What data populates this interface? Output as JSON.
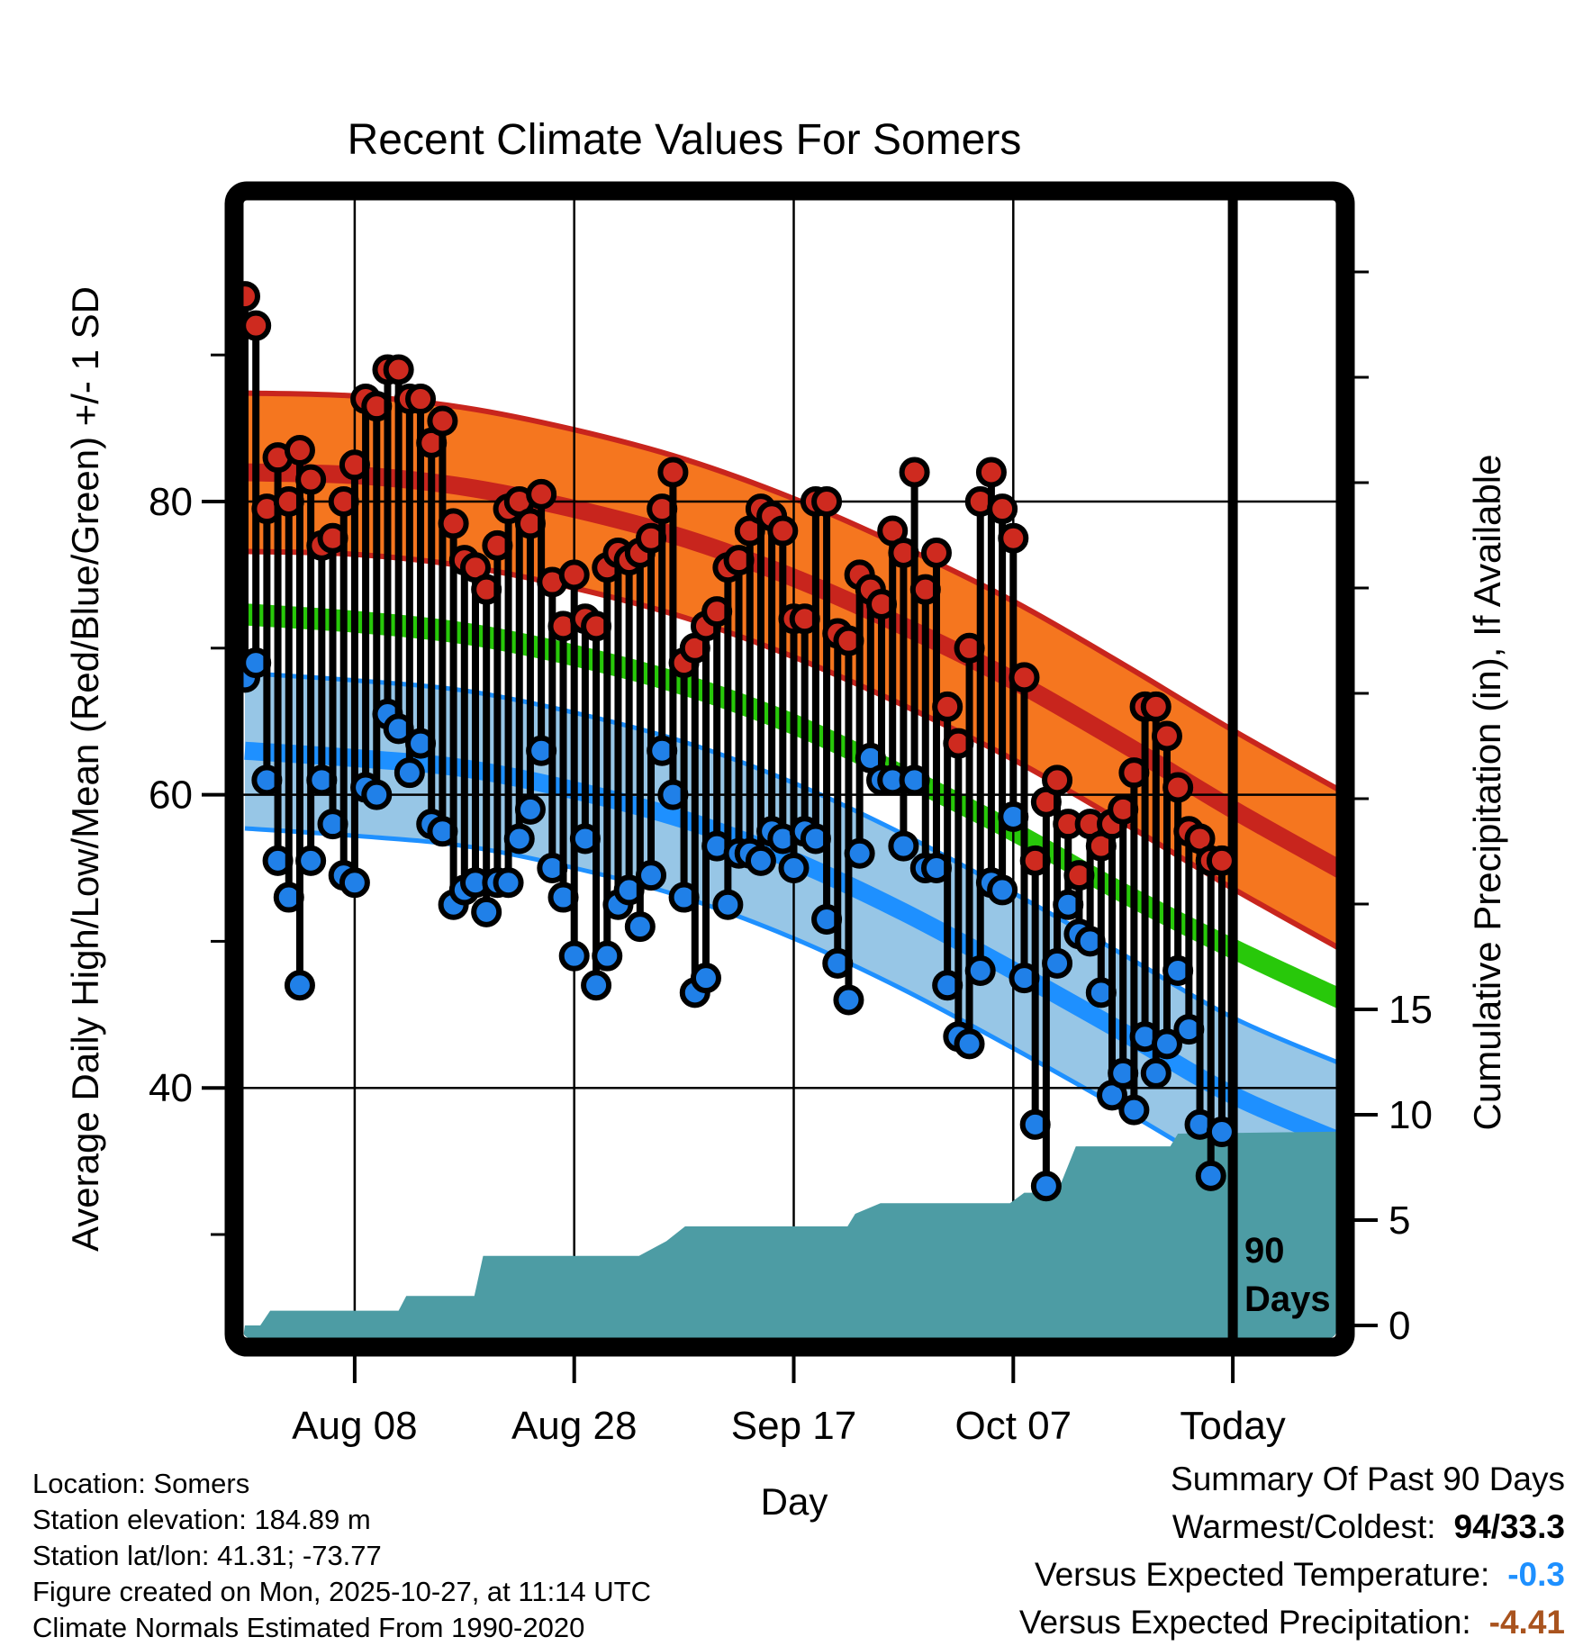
{
  "title": "Recent Climate Values For Somers",
  "footer": {
    "lines": [
      "Location: Somers",
      "Station elevation: 184.89 m",
      "Station lat/lon: 41.31; -73.77",
      "Figure created on Mon, 2025-10-27, at 11:14 UTC",
      "Climate Normals Estimated From 1990-2020"
    ]
  },
  "summary": {
    "title": "Summary Of Past 90 Days",
    "rows": [
      {
        "label": "Warmest/Coldest:",
        "value": "94/33.3",
        "color": "#000000"
      },
      {
        "label": "Versus Expected Temperature:",
        "value": "-0.3",
        "color": "#1E90FF"
      },
      {
        "label": "Versus Expected Precipitation:",
        "value": "-4.41",
        "color": "#A9531E"
      }
    ]
  },
  "chart_data": {
    "type": "composite",
    "subtype": "daily high/low stems + climate normal bands + cumulative precipitation area",
    "title": "Recent Climate Values For Somers",
    "x_axis": {
      "label": "Day",
      "start_date": "Jul 29",
      "today_day": 90,
      "ticks": [
        {
          "label": "Aug 08",
          "day": 10
        },
        {
          "label": "Aug 28",
          "day": 30
        },
        {
          "label": "Sep 17",
          "day": 50
        },
        {
          "label": "Oct 07",
          "day": 70
        },
        {
          "label": "Today",
          "day": 90
        }
      ]
    },
    "y_left": {
      "label": "Average Daily High/Low/Mean (Red/Blue/Green) +/- 1 SD",
      "major_ticks": [
        80,
        60,
        40
      ],
      "minor_ticks": [
        90,
        70,
        50,
        30
      ],
      "range_visible": [
        22,
        101
      ],
      "grid": "major horizontal + date verticals"
    },
    "y_right": {
      "label": "Cumulative Precipitation (in), If Available",
      "major_ticks": [
        15,
        10,
        5,
        0
      ],
      "minor_ticks": [
        20,
        25,
        30,
        35,
        40,
        45,
        50
      ],
      "range_visible": [
        0,
        53
      ]
    },
    "series": {
      "daily": {
        "first_day": 0,
        "highs": [
          94,
          92,
          79.5,
          83,
          80,
          83.5,
          81.5,
          77,
          77.5,
          80,
          82.5,
          87,
          86.5,
          89,
          89,
          87,
          87,
          84,
          85.5,
          78.5,
          76,
          75.5,
          74,
          77,
          79.5,
          80,
          78.5,
          80.5,
          74.5,
          71.5,
          75,
          72,
          71.5,
          75.5,
          76.5,
          76,
          76.5,
          77.5,
          79.5,
          82,
          69,
          70,
          71.5,
          72.5,
          75.5,
          76,
          78,
          79.5,
          79,
          78,
          72,
          72,
          80,
          80,
          71,
          70.5,
          75,
          74,
          73,
          78,
          76.5,
          82,
          74,
          76.5,
          66,
          63.5,
          70,
          80,
          82,
          79.5,
          77.5,
          68,
          55.5,
          59.5,
          61,
          58,
          54.5,
          58,
          56.5,
          58,
          59,
          61.5,
          66,
          66,
          64,
          60.5,
          57.5,
          57,
          55.5,
          55.5
        ],
        "lows": [
          68,
          69,
          61,
          55.5,
          53,
          47,
          55.5,
          61,
          58,
          54.5,
          54,
          60.5,
          60,
          65.5,
          64.5,
          61.5,
          63.5,
          58,
          57.5,
          52.5,
          53.5,
          54,
          52,
          54,
          54,
          57,
          59,
          63,
          55,
          53,
          49,
          57,
          47,
          49,
          52.5,
          53.5,
          51,
          54.5,
          63,
          60,
          53,
          46.5,
          47.5,
          56.5,
          52.5,
          56,
          56,
          55.5,
          57.5,
          57,
          55,
          57.5,
          57,
          51.5,
          48.5,
          46,
          56,
          62.5,
          61,
          61,
          56.5,
          61,
          55,
          55,
          47,
          43.5,
          43,
          48,
          54,
          53.5,
          58.5,
          47.5,
          37.5,
          33.3,
          48.5,
          52.5,
          50.5,
          50,
          46.5,
          39.5,
          41,
          38.5,
          43.5,
          41,
          43,
          48,
          44,
          37.5,
          34,
          37
        ]
      },
      "normals": {
        "description": "climate normal mean-high / mean / mean-low, +/- 1 SD bands",
        "sd_high": 5.4,
        "sd_low": 5.3,
        "green_half_width": 0.75,
        "points_day_high_mean_low": [
          [
            0,
            82.0,
            72.3,
            63.0
          ],
          [
            10,
            81.8,
            71.8,
            62.5
          ],
          [
            20,
            81.0,
            71.0,
            61.8
          ],
          [
            30,
            79.5,
            69.5,
            60.3
          ],
          [
            40,
            77.5,
            67.5,
            58.3
          ],
          [
            50,
            74.8,
            64.8,
            55.5
          ],
          [
            60,
            71.5,
            61.3,
            52.0
          ],
          [
            70,
            67.8,
            57.5,
            48.0
          ],
          [
            80,
            63.5,
            53.3,
            43.8
          ],
          [
            90,
            59.0,
            49.5,
            39.5
          ],
          [
            100,
            54.8,
            46.0,
            36.3
          ]
        ]
      },
      "precip_cumulative": {
        "unit": "in",
        "final_value": 9.2,
        "points_day_inches": [
          [
            0,
            0
          ],
          [
            1.4,
            0
          ],
          [
            2.3,
            0.7
          ],
          [
            14,
            0.7
          ],
          [
            14.7,
            1.4
          ],
          [
            20.9,
            1.4
          ],
          [
            21.7,
            3.3
          ],
          [
            35.9,
            3.3
          ],
          [
            38.4,
            4.0
          ],
          [
            40.1,
            4.7
          ],
          [
            54.9,
            4.7
          ],
          [
            55.6,
            5.3
          ],
          [
            57.9,
            5.8
          ],
          [
            69.7,
            5.8
          ],
          [
            71,
            6.3
          ],
          [
            74,
            6.3
          ],
          [
            75.7,
            8.5
          ],
          [
            84.3,
            8.5
          ],
          [
            85,
            9.1
          ],
          [
            99.5,
            9.2
          ]
        ]
      }
    },
    "annotation": {
      "line1": "90",
      "line2": "Days"
    },
    "legend_position": "none",
    "colors": {
      "high_band_fill": "#F5761F",
      "high_line": "#C8251D",
      "mean_line": "#28C80A",
      "low_band_fill": "#97C6E6",
      "low_line": "#1E90FF",
      "red_dot": "#CE2A1F",
      "blue_dot": "#2080E8",
      "precip_fill": "#4D9CA4",
      "today_line": "#000000",
      "frame": "#000000"
    }
  }
}
